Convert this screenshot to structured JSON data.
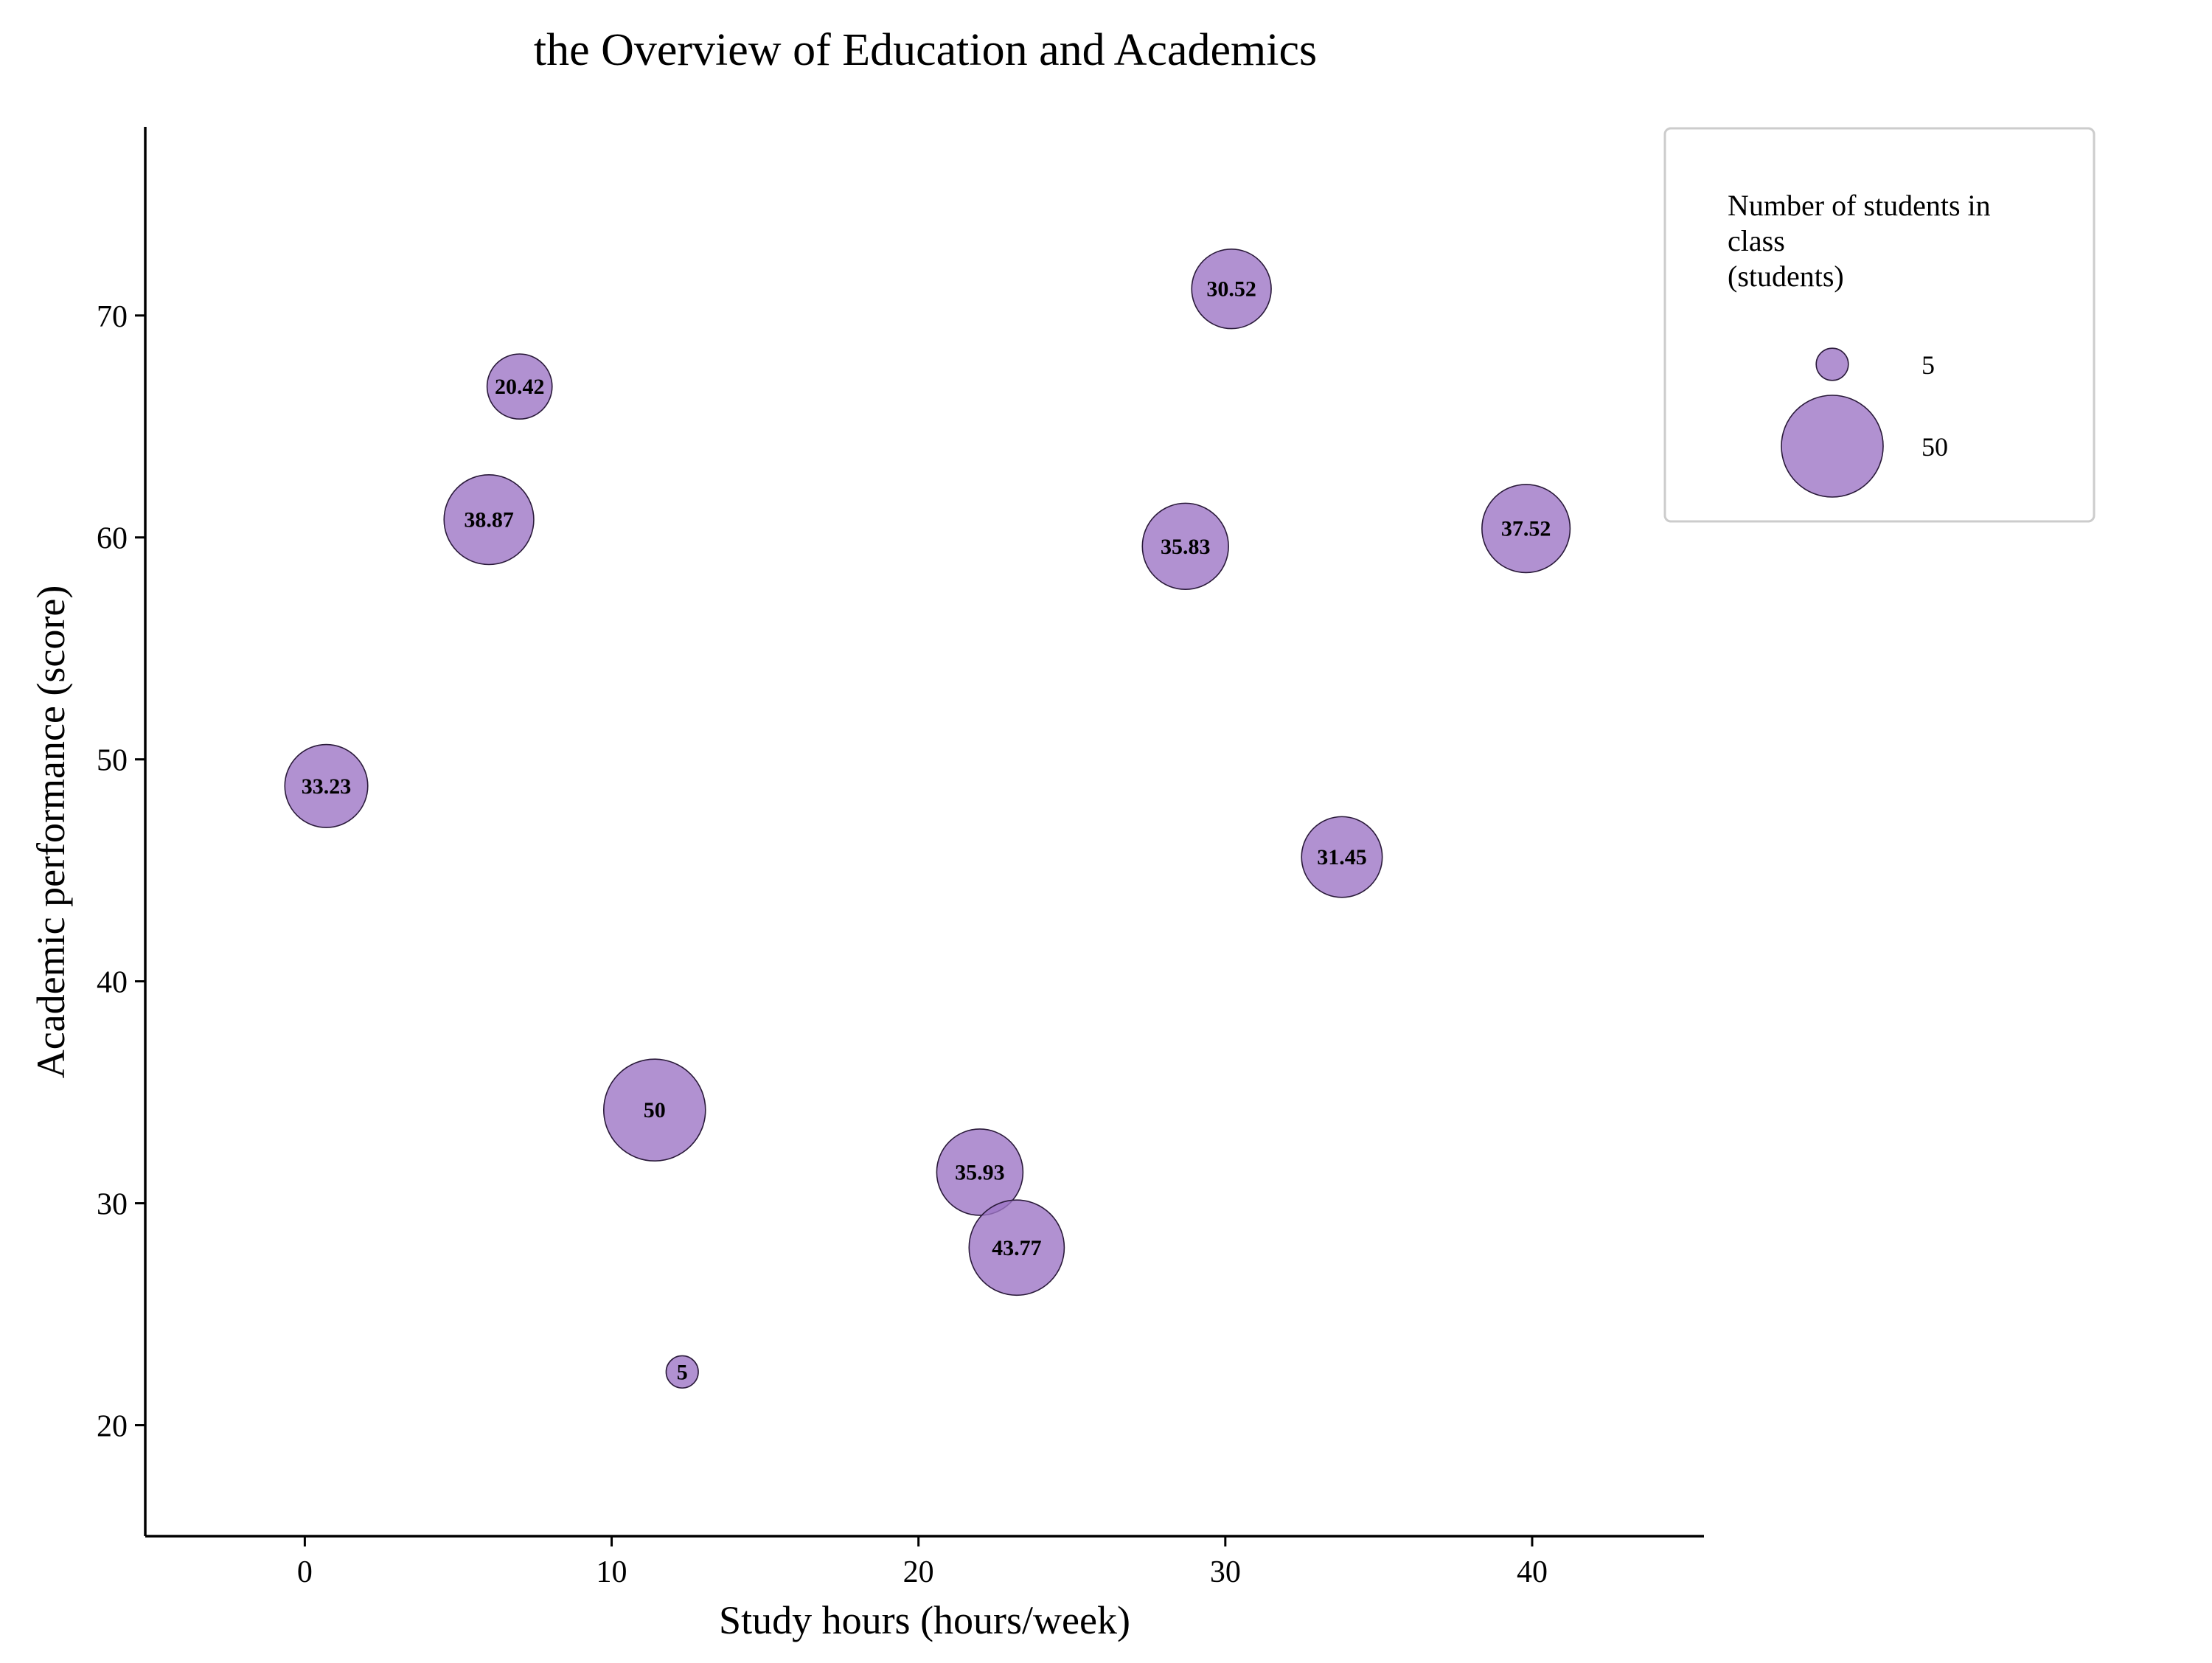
{
  "chart_data": {
    "type": "scatter",
    "title": "the Overview of Education and Academics",
    "xlabel": "Study hours (hours/week)",
    "ylabel": "Academic performance (score)",
    "xlim": [
      -5.2,
      45.6
    ],
    "ylim": [
      15,
      78.5
    ],
    "xticks": [
      0,
      10,
      20,
      30,
      40
    ],
    "yticks": [
      20,
      30,
      40,
      50,
      60,
      70
    ],
    "grid": false,
    "bubble_color": "#9e76c6",
    "bubble_edge_color": "#2a1a3a",
    "points": [
      {
        "x": 0.7,
        "y": 48.8,
        "size": 33.23,
        "label": "33.23"
      },
      {
        "x": 6.0,
        "y": 60.8,
        "size": 38.87,
        "label": "38.87"
      },
      {
        "x": 7.0,
        "y": 66.8,
        "size": 20.42,
        "label": "20.42"
      },
      {
        "x": 11.4,
        "y": 34.2,
        "size": 50,
        "label": "50"
      },
      {
        "x": 12.3,
        "y": 22.4,
        "size": 5,
        "label": "5"
      },
      {
        "x": 22.0,
        "y": 31.4,
        "size": 35.93,
        "label": "35.93"
      },
      {
        "x": 23.2,
        "y": 28.0,
        "size": 43.77,
        "label": "43.77"
      },
      {
        "x": 28.7,
        "y": 59.6,
        "size": 35.83,
        "label": "35.83"
      },
      {
        "x": 30.2,
        "y": 71.2,
        "size": 30.52,
        "label": "30.52"
      },
      {
        "x": 33.8,
        "y": 45.6,
        "size": 31.45,
        "label": "31.45"
      },
      {
        "x": 39.8,
        "y": 60.4,
        "size": 37.52,
        "label": "37.52"
      }
    ],
    "legend": {
      "title_lines": [
        "Number of students in",
        "class",
        "(students)"
      ],
      "entries": [
        {
          "size": 5,
          "label": "5"
        },
        {
          "size": 50,
          "label": "50"
        }
      ],
      "position": "top-right"
    }
  }
}
